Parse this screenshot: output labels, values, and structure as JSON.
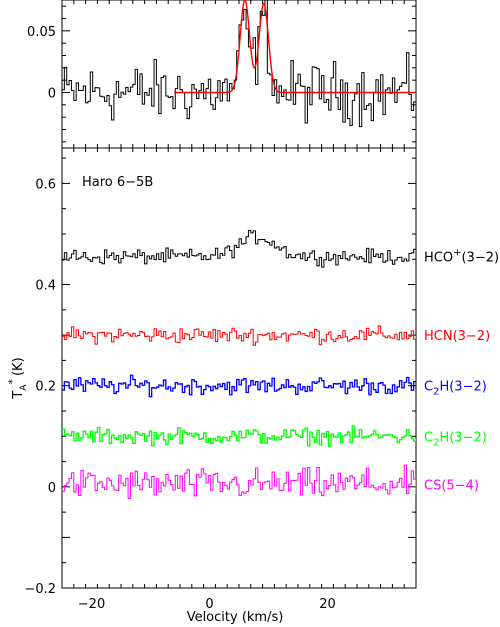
{
  "chart_data": [
    {
      "type": "line",
      "xlim": [
        -25,
        35
      ],
      "ylim": [
        -0.045,
        0.075
      ],
      "yticks": [
        0,
        0.05
      ],
      "ytick_labels": [
        "0",
        "0.05"
      ],
      "xticks": [
        -20,
        0,
        20
      ],
      "series": [
        {
          "color": "#000000",
          "style": "step",
          "x_start": -25,
          "x_step": 0.4,
          "noise_amp": 0.02,
          "values": [],
          "profile": {
            "kind": "double_gaussian",
            "offset": 0,
            "peaks": [
              {
                "center": 6,
                "amp": 0.055,
                "sigma": 0.9
              },
              {
                "center": 9.2,
                "amp": 0.06,
                "sigma": 0.9
              }
            ]
          }
        },
        {
          "color": "#ff0000",
          "style": "smooth",
          "x_start": -6,
          "x_end": 35,
          "values": [],
          "profile": {
            "kind": "double_gaussian",
            "offset": 0,
            "peaks": [
              {
                "center": 6,
                "amp": 0.075,
                "sigma": 0.8
              },
              {
                "center": 9.2,
                "amp": 0.072,
                "sigma": 0.8
              }
            ]
          }
        }
      ]
    },
    {
      "type": "line",
      "annotation": "Haro 6−5B",
      "xlabel": "Velocity (km/s)",
      "ylabel": "T",
      "ylabel_sub": "A",
      "ylabel_sup": "*",
      "ylabel_unit": "(K)",
      "xlim": [
        -25,
        35
      ],
      "ylim": [
        -0.2,
        0.67
      ],
      "xticks": [
        -20,
        0,
        20
      ],
      "xtick_labels": [
        "−20",
        "0",
        "20"
      ],
      "yticks": [
        -0.2,
        0,
        0.2,
        0.4,
        0.6
      ],
      "ytick_labels": [
        "−0.2",
        "0",
        "0.2",
        "0.4",
        "0.6"
      ],
      "series": [
        {
          "name": "HCO+(3−2)",
          "label_main": "HCO",
          "label_sup": "+",
          "label_tail": "(3−2)",
          "color": "#000000",
          "offset": 0.455,
          "noise_amp": 0.012,
          "style": "step",
          "bump": {
            "center": 8,
            "amp": 0.04,
            "sigma": 3
          }
        },
        {
          "name": "HCN(3−2)",
          "label_main": "HCN(3−2)",
          "color": "#ff0000",
          "offset": 0.3,
          "noise_amp": 0.013,
          "style": "step"
        },
        {
          "name": "C2H(3−2)",
          "label_main": "C",
          "label_sub": "2",
          "label_tail": "H(3−2)",
          "color": "#0000ff",
          "offset": 0.2,
          "noise_amp": 0.014,
          "style": "step"
        },
        {
          "name": "C2H(3−2)",
          "label_main": "C",
          "label_sub": "2",
          "label_tail": "H(3−2)",
          "color": "#00ff00",
          "offset": 0.1,
          "noise_amp": 0.013,
          "style": "step"
        },
        {
          "name": "CS(5−4)",
          "label_main": "CS(5−4)",
          "color": "#ff00ff",
          "offset": 0.005,
          "noise_amp": 0.025,
          "style": "step"
        }
      ]
    }
  ]
}
